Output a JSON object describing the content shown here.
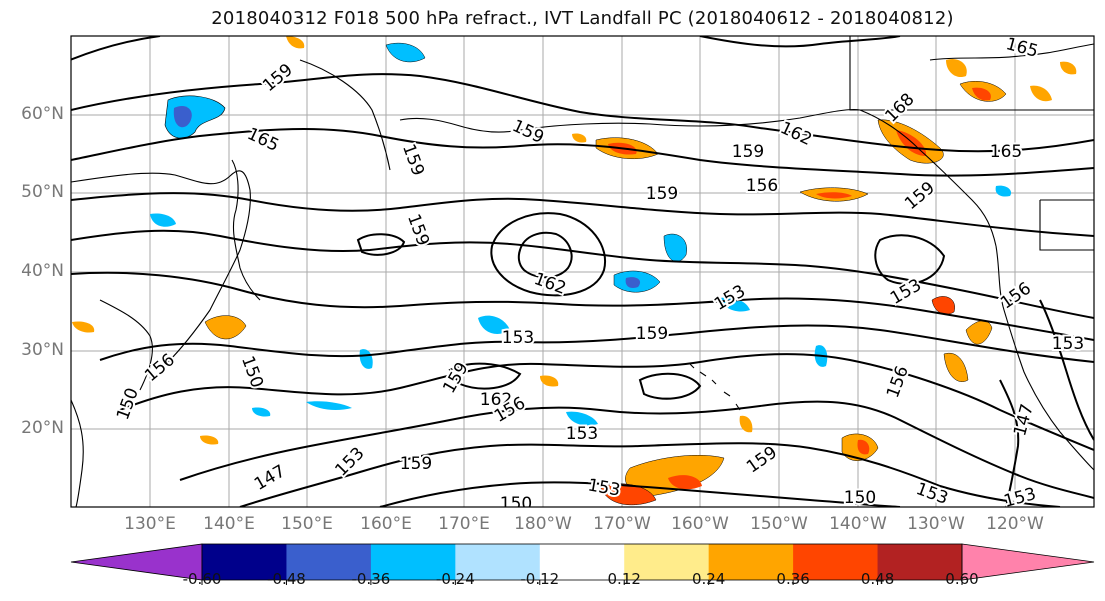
{
  "title": "2018040312 F018 500 hPa refract., IVT Landfall PC (2018040612 - 2018040812)",
  "lat_labels": [
    "60°N",
    "50°N",
    "40°N",
    "30°N",
    "20°N"
  ],
  "lon_labels": [
    "130°E",
    "140°E",
    "150°E",
    "160°E",
    "170°E",
    "180°W",
    "170°W",
    "160°W",
    "150°W",
    "140°W",
    "130°W",
    "120°W"
  ],
  "contour_labels": [
    "159",
    "165",
    "159",
    "159",
    "162",
    "159",
    "165",
    "168",
    "159",
    "156",
    "159",
    "159",
    "162",
    "153",
    "156",
    "153",
    "153",
    "159",
    "150",
    "156",
    "150",
    "159",
    "162",
    "156",
    "153",
    "147",
    "153",
    "159",
    "153",
    "159",
    "150",
    "150",
    "153",
    "153",
    "156",
    "147",
    "153",
    "165"
  ],
  "colorbar": {
    "tick_labels": [
      "-0.60",
      "-0.48",
      "-0.36",
      "-0.24",
      "-0.12",
      "0.12",
      "0.24",
      "0.36",
      "0.48",
      "0.60"
    ],
    "colors": [
      "#9932cc",
      "#00008b",
      "#3a5fcd",
      "#00bfff",
      "#b0e2ff",
      "#ffffff",
      "#ffec8b",
      "#ffa500",
      "#ff4500",
      "#b22222",
      "#ff82ab"
    ]
  },
  "colors": {
    "contour": "#000000",
    "coast": "#000000",
    "grid": "#aaaaaa",
    "tick_text": "#777777"
  }
}
